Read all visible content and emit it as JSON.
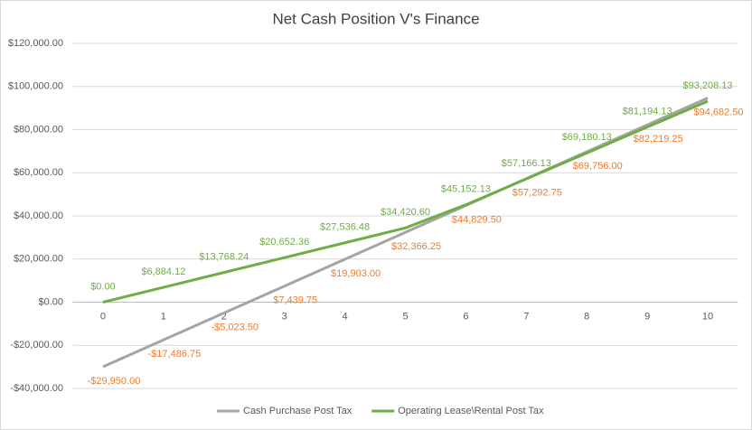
{
  "chart_data": {
    "type": "line",
    "title": "Net Cash Position V's Finance",
    "categories": [
      "0",
      "1",
      "2",
      "3",
      "4",
      "5",
      "6",
      "7",
      "8",
      "9",
      "10"
    ],
    "series": [
      {
        "name": "Cash Purchase Post Tax",
        "color": "#a5a5a5",
        "label_color": "#ed7d31",
        "values": [
          -29950,
          -17486.75,
          -5023.5,
          7439.75,
          19903,
          32366.25,
          44829.5,
          57292.75,
          69756,
          82219.25,
          94682.5
        ],
        "value_labels": [
          "-$29,950.00",
          "-$17,486.75",
          "-$5,023.50",
          "$7,439.75",
          "$19,903.00",
          "$32,366.25",
          "$44,829.50",
          "$57,292.75",
          "$69,756.00",
          "$82,219.25",
          "$94,682.50"
        ]
      },
      {
        "name": "Operating Lease\\Rental Post Tax",
        "color": "#70ad47",
        "label_color": "#70ad47",
        "values": [
          0,
          6884.12,
          13768.24,
          20652.36,
          27536.48,
          34420.6,
          45152.13,
          57166.13,
          69180.13,
          81194.13,
          93208.13
        ],
        "value_labels": [
          "$0.00",
          "$6,884.12",
          "$13,768.24",
          "$20,652.36",
          "$27,536.48",
          "$34,420.60",
          "$45,152.13",
          "$57,166.13",
          "$69,180.13",
          "$81,194.13",
          "$93,208.13"
        ]
      }
    ],
    "ylim": [
      -40000,
      120000
    ],
    "yticks": [
      {
        "value": -40000,
        "label": "-$40,000.00"
      },
      {
        "value": -20000,
        "label": "-$20,000.00"
      },
      {
        "value": 0,
        "label": "$0.00"
      },
      {
        "value": 20000,
        "label": "$20,000.00"
      },
      {
        "value": 40000,
        "label": "$40,000.00"
      },
      {
        "value": 60000,
        "label": "$60,000.00"
      },
      {
        "value": 80000,
        "label": "$80,000.00"
      },
      {
        "value": 100000,
        "label": "$100,000.00"
      },
      {
        "value": 120000,
        "label": "$120,000.00"
      }
    ],
    "grid": true,
    "legend": "bottom"
  }
}
